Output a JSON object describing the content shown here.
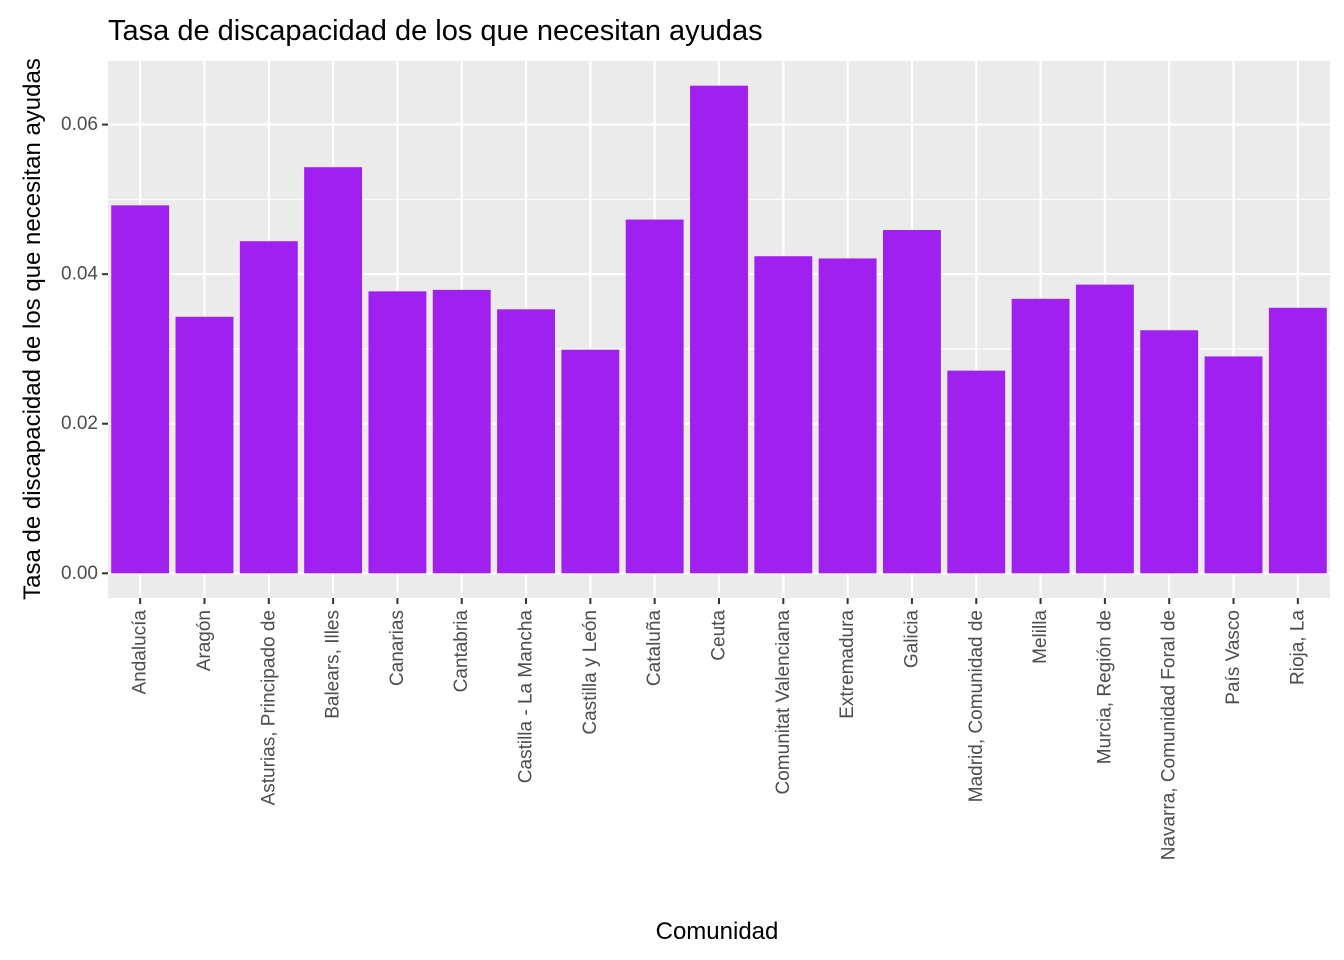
{
  "chart_data": {
    "type": "bar",
    "title": "Tasa de discapacidad de los que necesitan ayudas",
    "xlabel": "Comunidad",
    "ylabel": "Tasa de discapacidad de los que necesitan ayudas",
    "categories": [
      "Andalucía",
      "Aragón",
      "Asturias, Principado de",
      "Balears, Illes",
      "Canarias",
      "Cantabria",
      "Castilla - La Mancha",
      "Castilla y León",
      "Cataluña",
      "Ceuta",
      "Comunitat Valenciana",
      "Extremadura",
      "Galicia",
      "Madrid, Comunidad de",
      "Melilla",
      "Murcia, Región de",
      "Navarra, Comunidad Foral de",
      "País Vasco",
      "Rioja, La"
    ],
    "values": [
      0.0492,
      0.0343,
      0.0444,
      0.0543,
      0.0377,
      0.0379,
      0.0353,
      0.0299,
      0.0473,
      0.0652,
      0.0424,
      0.0421,
      0.0459,
      0.0271,
      0.0367,
      0.0386,
      0.0325,
      0.029,
      0.0355
    ],
    "yticks": [
      0.0,
      0.02,
      0.04,
      0.06
    ],
    "ytick_labels": [
      "0.00",
      "0.02",
      "0.04",
      "0.06"
    ],
    "ylim": [
      -0.0033,
      0.0685
    ],
    "grid": true,
    "colors": {
      "bar": "#A020F0",
      "panel": "#EBEBEB",
      "grid": "#FFFFFF"
    }
  }
}
